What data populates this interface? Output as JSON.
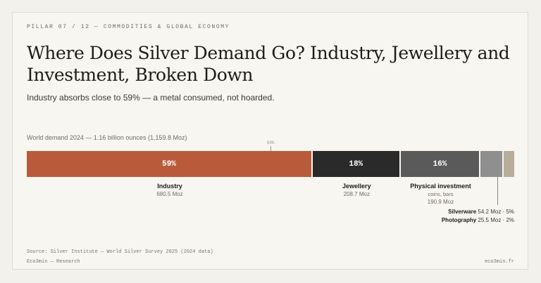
{
  "header": {
    "eyebrow": "PILLAR 07 / 12 — COMMODITIES & GLOBAL ECONOMY",
    "title": "Where Does Silver Demand Go? Industry, Jewellery and Investment, Broken Down",
    "subtitle": "Industry absorbs close to 59% — a metal consumed, not hoarded."
  },
  "chart_data": {
    "type": "bar",
    "orientation": "stacked-horizontal",
    "label": "World demand 2024 — 1.16 billion ounces (1,159.8 Moz)",
    "total": 1159.8,
    "unit": "Moz",
    "reference_marker": {
      "label": "50%",
      "value": 50
    },
    "segments": [
      {
        "name": "Industry",
        "value": 680.5,
        "value_label": "680.5 Moz",
        "pct": 59,
        "pct_label": "59%",
        "color": "#b95b3b"
      },
      {
        "name": "Jewellery",
        "value": 208.7,
        "value_label": "208.7 Moz",
        "pct": 18,
        "pct_label": "18%",
        "color": "#2a2a2a"
      },
      {
        "name": "Physical investment",
        "note": "coins, bars",
        "value": 190.9,
        "value_label": "190.9 Moz",
        "pct": 16,
        "pct_label": "16%",
        "color": "#5a5a5a"
      },
      {
        "name": "Silverware",
        "value": 54.2,
        "value_label": "54.2 Moz · 5%",
        "pct": 5,
        "color": "#8f8f8f"
      },
      {
        "name": "Photography",
        "value": 25.5,
        "value_label": "25.5 Moz · 2%",
        "pct": 2,
        "color": "#b8ad9b"
      }
    ]
  },
  "footer": {
    "source": "Source: Silver Institute — World Silver Survey 2025 (2024 data)",
    "brand": "Eco3min — Research",
    "site": "eco3min.fr"
  }
}
